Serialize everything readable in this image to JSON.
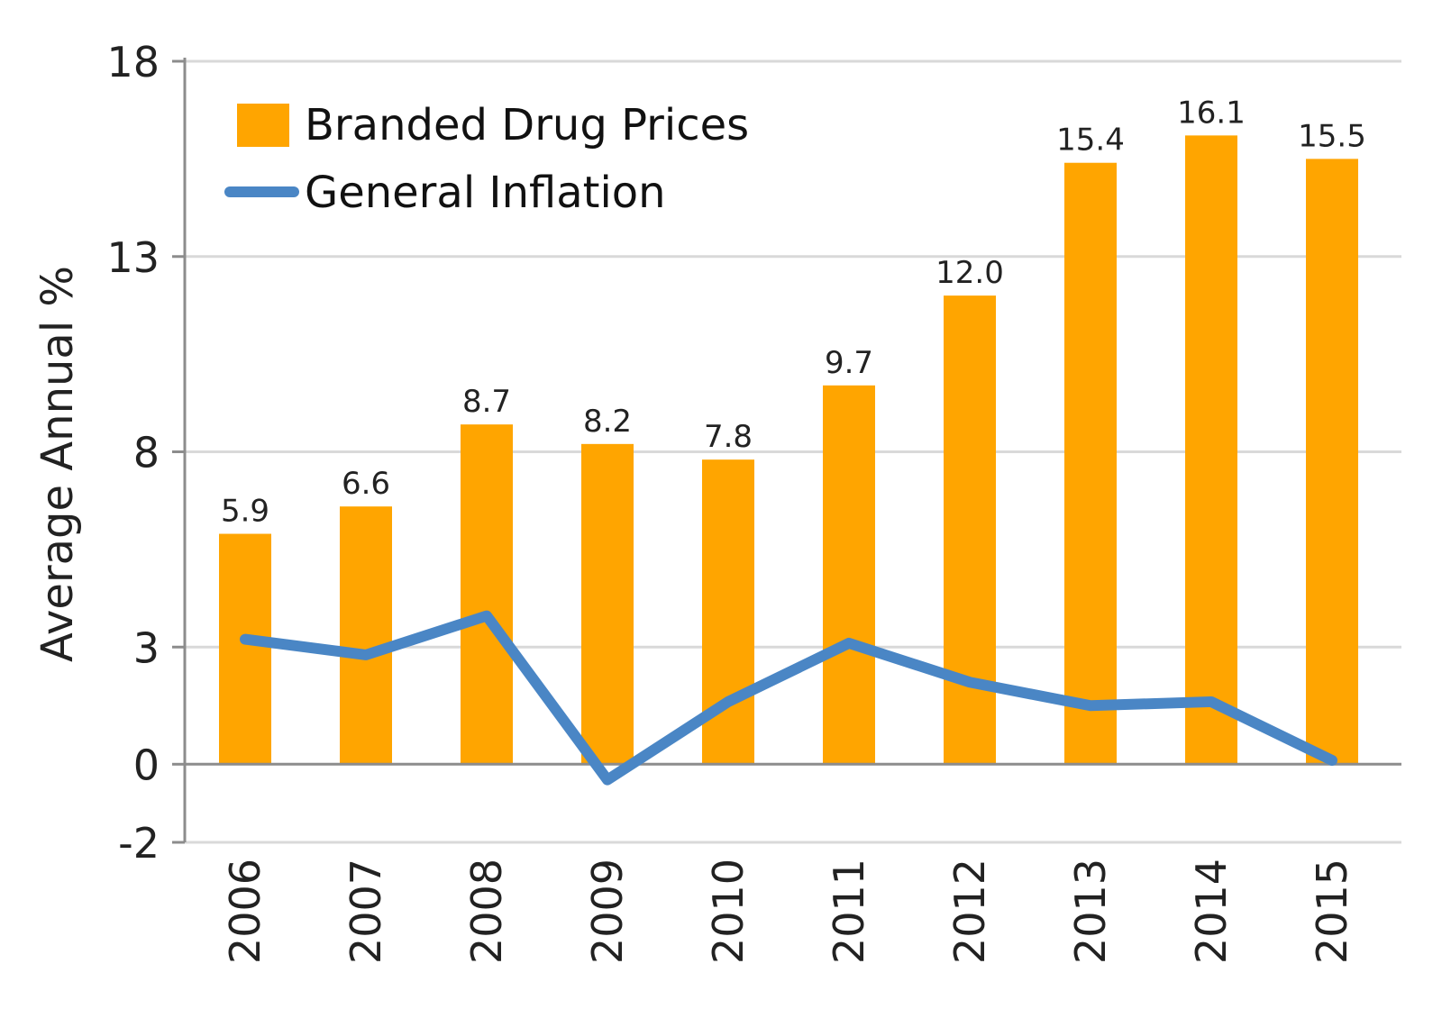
{
  "chart_data": {
    "type": "bar",
    "title": "",
    "xlabel": "",
    "ylabel": "Average Annual %",
    "ylim": [
      -2,
      18
    ],
    "yticks": [
      -2,
      0,
      3,
      8,
      13,
      18
    ],
    "grid": true,
    "legend_position": "top-left",
    "categories": [
      "2006",
      "2007",
      "2008",
      "2009",
      "2010",
      "2011",
      "2012",
      "2013",
      "2014",
      "2015"
    ],
    "series": [
      {
        "name": "Branded Drug Prices",
        "kind": "bar",
        "color": "#FFA500",
        "values": [
          5.9,
          6.6,
          8.7,
          8.2,
          7.8,
          9.7,
          12.0,
          15.4,
          16.1,
          15.5
        ],
        "labels": [
          "5.9",
          "6.6",
          "8.7",
          "8.2",
          "7.8",
          "9.7",
          "12.0",
          "15.4",
          "16.1",
          "15.5"
        ]
      },
      {
        "name": "General Inflation",
        "kind": "line",
        "color": "#4A86C5",
        "values": [
          3.2,
          2.8,
          3.8,
          -0.4,
          1.6,
          3.1,
          2.1,
          1.5,
          1.6,
          0.1
        ]
      }
    ]
  }
}
